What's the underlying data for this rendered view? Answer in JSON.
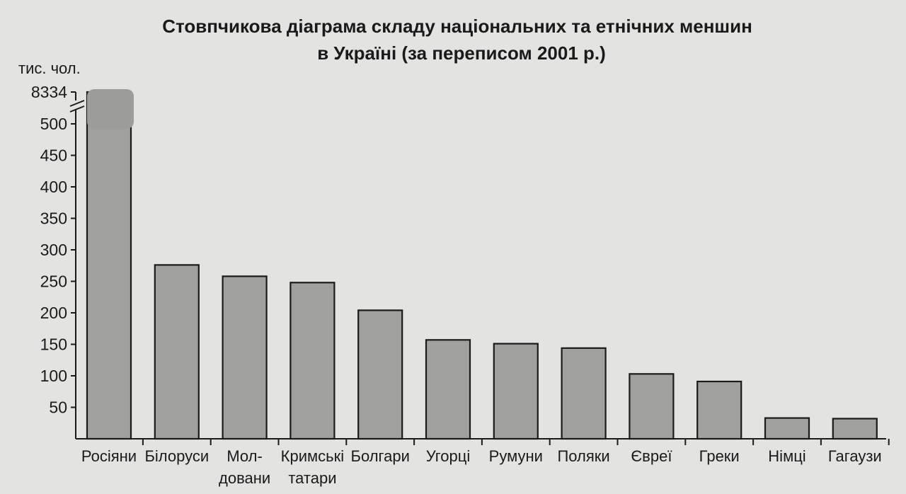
{
  "chart_data": {
    "type": "bar",
    "title": [
      "Стовпчикова діаграма складу національних та етнічних меншин",
      "в Україні (за переписом 2001 р.)"
    ],
    "ylabel": "тис. чол.",
    "yticks": [
      50,
      100,
      150,
      200,
      250,
      300,
      350,
      400,
      450,
      500
    ],
    "ybreak_label": "8334",
    "ylim": [
      0,
      500
    ],
    "axis_break": true,
    "categories": [
      [
        "Росіяни"
      ],
      [
        "Білоруси"
      ],
      [
        "Мол-",
        "довани"
      ],
      [
        "Кримські",
        "татари"
      ],
      [
        "Болгари"
      ],
      [
        "Угорці"
      ],
      [
        "Румуни"
      ],
      [
        "Поляки"
      ],
      [
        "Євреї"
      ],
      [
        "Греки"
      ],
      [
        "Німці"
      ],
      [
        "Гагаузи"
      ]
    ],
    "values": [
      8334,
      276,
      258,
      248,
      204,
      157,
      151,
      144,
      103,
      91,
      33,
      32
    ],
    "bar_color": "#a0a09e",
    "grid": false,
    "legend": "none"
  }
}
